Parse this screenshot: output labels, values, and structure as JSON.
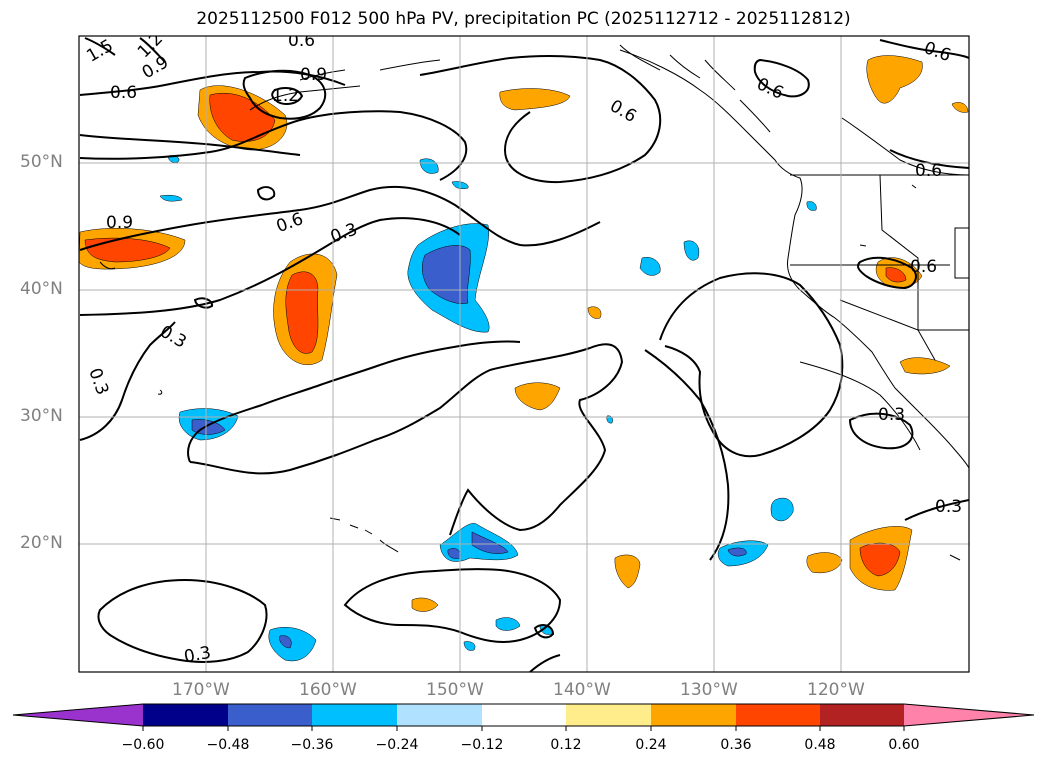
{
  "title": "2025112500 F012 500 hPa PV, precipitation PC (2025112712 - 2025112812)",
  "map": {
    "projection": "PlateCarree",
    "lon_range": [
      -180,
      -110
    ],
    "lat_range": [
      10,
      60
    ],
    "lat_labels": [
      "50°N",
      "40°N",
      "30°N",
      "20°N"
    ],
    "lon_labels": [
      "170°W",
      "160°W",
      "150°W",
      "140°W",
      "130°W",
      "120°W"
    ],
    "gridline_color": "#b0b0b0"
  },
  "contours": {
    "field": "500 hPa PV",
    "levels": [
      0.3,
      0.6,
      0.9,
      1.2,
      1.5
    ],
    "color": "#000000",
    "labels": [
      "1.5",
      "1.2",
      "0.9",
      "0.6",
      "0.9",
      "0.6",
      "1.2",
      "0.6",
      "0.6",
      "0.6",
      "0.9",
      "0.6",
      "0.3",
      "0.3",
      "0.3",
      "0.3",
      "0.3",
      "0.3",
      "0.6",
      "0.6"
    ]
  },
  "colorbar": {
    "field": "precipitation PC",
    "tick_labels": [
      "−0.60",
      "−0.48",
      "−0.36",
      "−0.24",
      "−0.12",
      "0.12",
      "0.24",
      "0.36",
      "0.48",
      "0.60"
    ],
    "bin_colors": [
      "#9a32cd",
      "#00008b",
      "#3a5fcd",
      "#00bfff",
      "#b0e2ff",
      "#ffffff",
      "#ffec8b",
      "#ffa500",
      "#ff4500",
      "#b22222",
      "#ff82ab"
    ],
    "extend": "both"
  }
}
